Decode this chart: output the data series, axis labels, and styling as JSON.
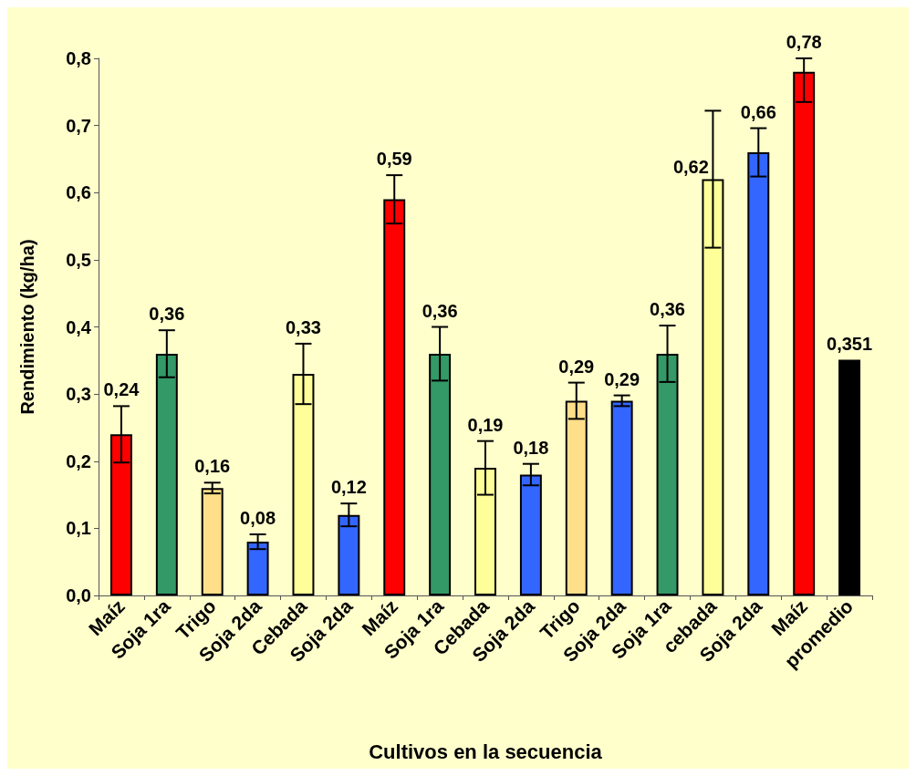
{
  "chart_data": {
    "type": "bar",
    "xlabel": "Cultivos en la secuencia",
    "ylabel": "Rendimiento (kg/ha)",
    "categories": [
      "Maíz",
      "Soja 1ra",
      "Trigo",
      "Soja 2da",
      "Cebada",
      "Soja 2da",
      "Maíz",
      "Soja 1ra",
      "Cebada",
      "Soja 2da",
      "Trigo",
      "Soja 2da",
      "Soja 1ra",
      "cebada",
      "Soja 2da",
      "Maíz",
      "promedio"
    ],
    "values": [
      0.24,
      0.36,
      0.16,
      0.08,
      0.33,
      0.12,
      0.59,
      0.36,
      0.19,
      0.18,
      0.29,
      0.29,
      0.36,
      0.62,
      0.66,
      0.78,
      0.351
    ],
    "value_labels": [
      "0,24",
      "0,36",
      "0,16",
      "0,08",
      "0,33",
      "0,12",
      "0,59",
      "0,36",
      "0,19",
      "0,18",
      "0,29",
      "0,29",
      "0,36",
      "0,62",
      "0,66",
      "0,78",
      "0,351"
    ],
    "errors": [
      0.042,
      0.035,
      0.008,
      0.011,
      0.045,
      0.017,
      0.036,
      0.04,
      0.04,
      0.016,
      0.027,
      0.008,
      0.042,
      0.102,
      0.036,
      [
        0.735,
        0.8
      ],
      null
    ],
    "colors": [
      "#ff0000",
      "#339966",
      "#ffdf8a",
      "#3366ff",
      "#ffff99",
      "#3366ff",
      "#ff0000",
      "#339966",
      "#ffff99",
      "#3366ff",
      "#ffdf8a",
      "#3366ff",
      "#339966",
      "#ffff99",
      "#3366ff",
      "#ff0000",
      "#000000"
    ],
    "ylim": [
      0,
      0.8
    ],
    "yticks": [
      {
        "value": 0,
        "label": "0,0"
      },
      {
        "value": 0.1,
        "label": "0,1"
      },
      {
        "value": 0.2,
        "label": "0,2"
      },
      {
        "value": 0.3,
        "label": "0,3"
      },
      {
        "value": 0.4,
        "label": "0,4"
      },
      {
        "value": 0.5,
        "label": "0,5"
      },
      {
        "value": 0.6,
        "label": "0,6"
      },
      {
        "value": 0.7,
        "label": "0,7"
      },
      {
        "value": 0.8,
        "label": "0,8"
      }
    ],
    "grid": false
  }
}
